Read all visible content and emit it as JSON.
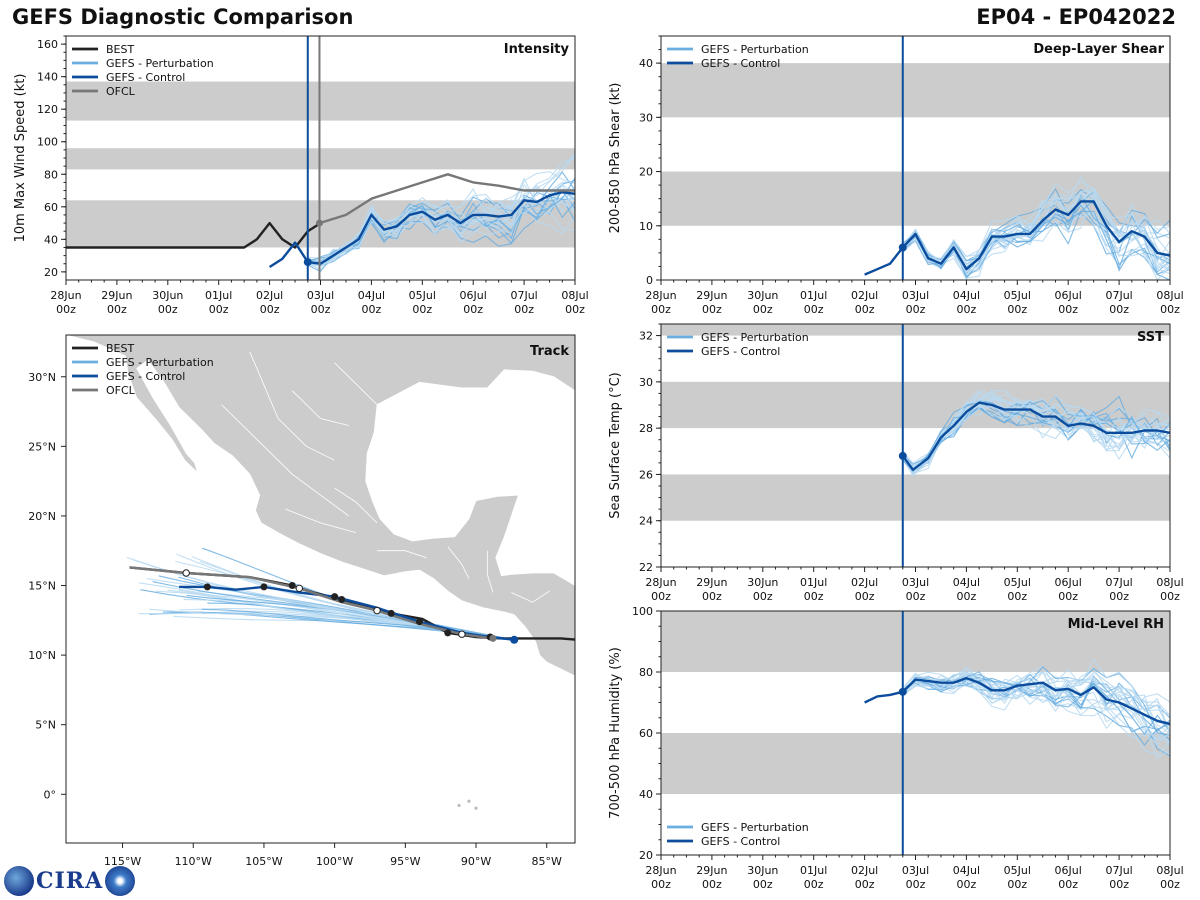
{
  "header": {
    "title": "GEFS Diagnostic Comparison",
    "storm_id": "EP04 - EP042022"
  },
  "logo": {
    "text": "CIRA",
    "icon": "cira-logo"
  },
  "colors": {
    "best": "#222222",
    "pert": "#6aaee0",
    "pert_light": "#b9d9f1",
    "control": "#0b4c9c",
    "ofcl": "#777777",
    "band": "#cccccc"
  },
  "time_axis": {
    "ticks": [
      "28Jun\n00z",
      "29Jun\n00z",
      "30Jun\n00z",
      "01Jul\n00z",
      "02Jul\n00z",
      "03Jul\n00z",
      "04Jul\n00z",
      "05Jul\n00z",
      "06Jul\n00z",
      "07Jul\n00z",
      "08Jul\n00z"
    ],
    "range_days": [
      0,
      10
    ]
  },
  "chart_data": [
    {
      "id": "intensity",
      "type": "line",
      "title": "Intensity",
      "ylabel": "10m Max Wind Speed (kt)",
      "ylim": [
        15,
        165
      ],
      "yticks": [
        20,
        40,
        60,
        80,
        100,
        120,
        140,
        160
      ],
      "bands": [
        [
          35,
          64
        ],
        [
          83,
          96
        ],
        [
          113,
          137
        ]
      ],
      "init_day": 4.75,
      "ofcl_init_day": 4.98,
      "legend": [
        "BEST",
        "GEFS - Perturbation",
        "GEFS - Control",
        "OFCL"
      ],
      "series": [
        {
          "name": "BEST",
          "x": [
            0,
            3.5,
            3.75,
            4.0,
            4.25,
            4.5,
            4.75,
            5.0
          ],
          "values": [
            35,
            35,
            40,
            50,
            40,
            35,
            45,
            50
          ]
        },
        {
          "name": "GEFS - Control",
          "x": [
            4.0,
            4.25,
            4.5,
            4.75,
            5.0,
            5.25,
            5.5,
            5.75,
            6.0,
            6.25,
            6.5,
            6.75,
            7.0,
            7.25,
            7.5,
            7.75,
            8.0,
            8.25,
            8.5,
            8.75,
            9.0,
            9.25,
            9.5,
            9.75,
            10.0
          ],
          "values": [
            23,
            28,
            38,
            26,
            25,
            30,
            35,
            40,
            55,
            46,
            48,
            55,
            57,
            52,
            55,
            50,
            55,
            55,
            54,
            55,
            64,
            63,
            67,
            69,
            68
          ]
        },
        {
          "name": "OFCL",
          "x": [
            4.98,
            5.5,
            6.0,
            6.5,
            7.0,
            7.5,
            8.0,
            8.5,
            9.0,
            10.0
          ],
          "values": [
            50,
            55,
            65,
            70,
            75,
            80,
            75,
            73,
            70,
            70
          ]
        }
      ]
    },
    {
      "id": "shear",
      "type": "line",
      "title": "Deep-Layer Shear",
      "ylabel": "200-850 hPa Shear (kt)",
      "ylim": [
        0,
        45
      ],
      "yticks": [
        0,
        10,
        20,
        30,
        40
      ],
      "bands": [
        [
          10,
          20
        ],
        [
          30,
          40
        ]
      ],
      "init_day": 4.75,
      "legend": [
        "GEFS - Perturbation",
        "GEFS - Control"
      ],
      "series": [
        {
          "name": "GEFS - Control",
          "x": [
            4.0,
            4.25,
            4.5,
            4.75,
            5.0,
            5.25,
            5.5,
            5.75,
            6.0,
            6.25,
            6.5,
            6.75,
            7.0,
            7.25,
            7.5,
            7.75,
            8.0,
            8.25,
            8.5,
            8.75,
            9.0,
            9.25,
            9.5,
            9.75,
            10.0
          ],
          "values": [
            1,
            2,
            3,
            6,
            8.5,
            4,
            3,
            6,
            2,
            4,
            8,
            8,
            8.5,
            8.5,
            11,
            13,
            12,
            14.5,
            14.5,
            10,
            7,
            9,
            8,
            5,
            4.5
          ]
        }
      ]
    },
    {
      "id": "track",
      "type": "scatter",
      "title": "Track",
      "xlim": [
        -119,
        -83
      ],
      "ylim": [
        -3.5,
        33
      ],
      "xticks": [
        "115°W",
        "110°W",
        "105°W",
        "100°W",
        "95°W",
        "90°W",
        "85°W"
      ],
      "yticks": [
        "0°",
        "5°N",
        "10°N",
        "15°N",
        "20°N",
        "25°N",
        "30°N"
      ],
      "legend": [
        "BEST",
        "GEFS - Perturbation",
        "GEFS - Control",
        "OFCL"
      ],
      "series": [
        {
          "name": "BEST",
          "lon": [
            -82.8,
            -84.0,
            -86.0,
            -88.2,
            -90.0,
            -92.0,
            -93.8,
            -96.0,
            -97.5,
            -99.5,
            -101.5,
            -103.0,
            -106.0,
            -110.5,
            -114.5
          ],
          "lat": [
            11.1,
            11.2,
            11.2,
            11.2,
            11.3,
            11.6,
            12.6,
            13.0,
            13.5,
            14.0,
            14.5,
            15.0,
            15.6,
            15.9,
            16.3
          ]
        },
        {
          "name": "GEFS - Control",
          "lon": [
            -87.3,
            -89.0,
            -91.0,
            -94.0,
            -97.0,
            -100.0,
            -102.5,
            -105.0,
            -107.0,
            -109.0,
            -111.0
          ],
          "lat": [
            11.1,
            11.3,
            11.6,
            12.4,
            13.4,
            14.2,
            14.5,
            14.9,
            14.7,
            14.9,
            14.9
          ]
        },
        {
          "name": "OFCL",
          "lon": [
            -88.8,
            -91.0,
            -94.2,
            -97.0,
            -99.5,
            -102.5,
            -106.0,
            -110.5,
            -114.5
          ],
          "lat": [
            11.2,
            11.5,
            12.3,
            13.2,
            13.8,
            14.8,
            15.6,
            15.9,
            16.3
          ]
        }
      ]
    },
    {
      "id": "sst",
      "type": "line",
      "title": "SST",
      "ylabel": "Sea Surface Temp (°C)",
      "ylim": [
        22,
        32.5
      ],
      "yticks": [
        22,
        24,
        26,
        28,
        30,
        32
      ],
      "bands": [
        [
          24,
          26
        ],
        [
          28,
          30
        ],
        [
          32,
          32.5
        ]
      ],
      "init_day": 4.75,
      "legend": [
        "GEFS - Perturbation",
        "GEFS - Control"
      ],
      "series": [
        {
          "name": "GEFS - Control",
          "x": [
            4.75,
            4.95,
            5.25,
            5.5,
            5.75,
            6.0,
            6.25,
            6.5,
            6.75,
            7.0,
            7.25,
            7.5,
            7.75,
            8.0,
            8.25,
            8.5,
            8.75,
            9.0,
            9.25,
            9.5,
            9.75,
            10.0
          ],
          "values": [
            26.8,
            26.2,
            26.7,
            27.6,
            28.1,
            28.7,
            29.1,
            29.0,
            28.8,
            28.8,
            28.8,
            28.5,
            28.5,
            28.1,
            28.2,
            28.1,
            27.8,
            27.8,
            27.8,
            27.9,
            27.9,
            27.8
          ]
        }
      ]
    },
    {
      "id": "rh",
      "type": "line",
      "title": "Mid-Level RH",
      "ylabel": "700-500 hPa Humidity (%)",
      "ylim": [
        20,
        100
      ],
      "yticks": [
        20,
        40,
        60,
        80,
        100
      ],
      "bands": [
        [
          40,
          60
        ],
        [
          80,
          100
        ]
      ],
      "init_day": 4.75,
      "legend": [
        "GEFS - Perturbation",
        "GEFS - Control"
      ],
      "series": [
        {
          "name": "GEFS - Control",
          "x": [
            4.0,
            4.25,
            4.5,
            4.75,
            5.0,
            5.25,
            5.5,
            5.75,
            6.0,
            6.25,
            6.5,
            6.75,
            7.0,
            7.25,
            7.5,
            7.75,
            8.0,
            8.25,
            8.5,
            8.75,
            9.0,
            9.25,
            9.5,
            9.75,
            10.0
          ],
          "values": [
            70,
            72,
            72.5,
            73.5,
            77.5,
            77,
            76.5,
            76.5,
            78,
            76.5,
            74,
            74,
            75.5,
            76,
            76.5,
            74,
            74.5,
            72.5,
            75,
            71,
            70,
            68,
            66,
            64,
            63
          ]
        }
      ]
    }
  ]
}
